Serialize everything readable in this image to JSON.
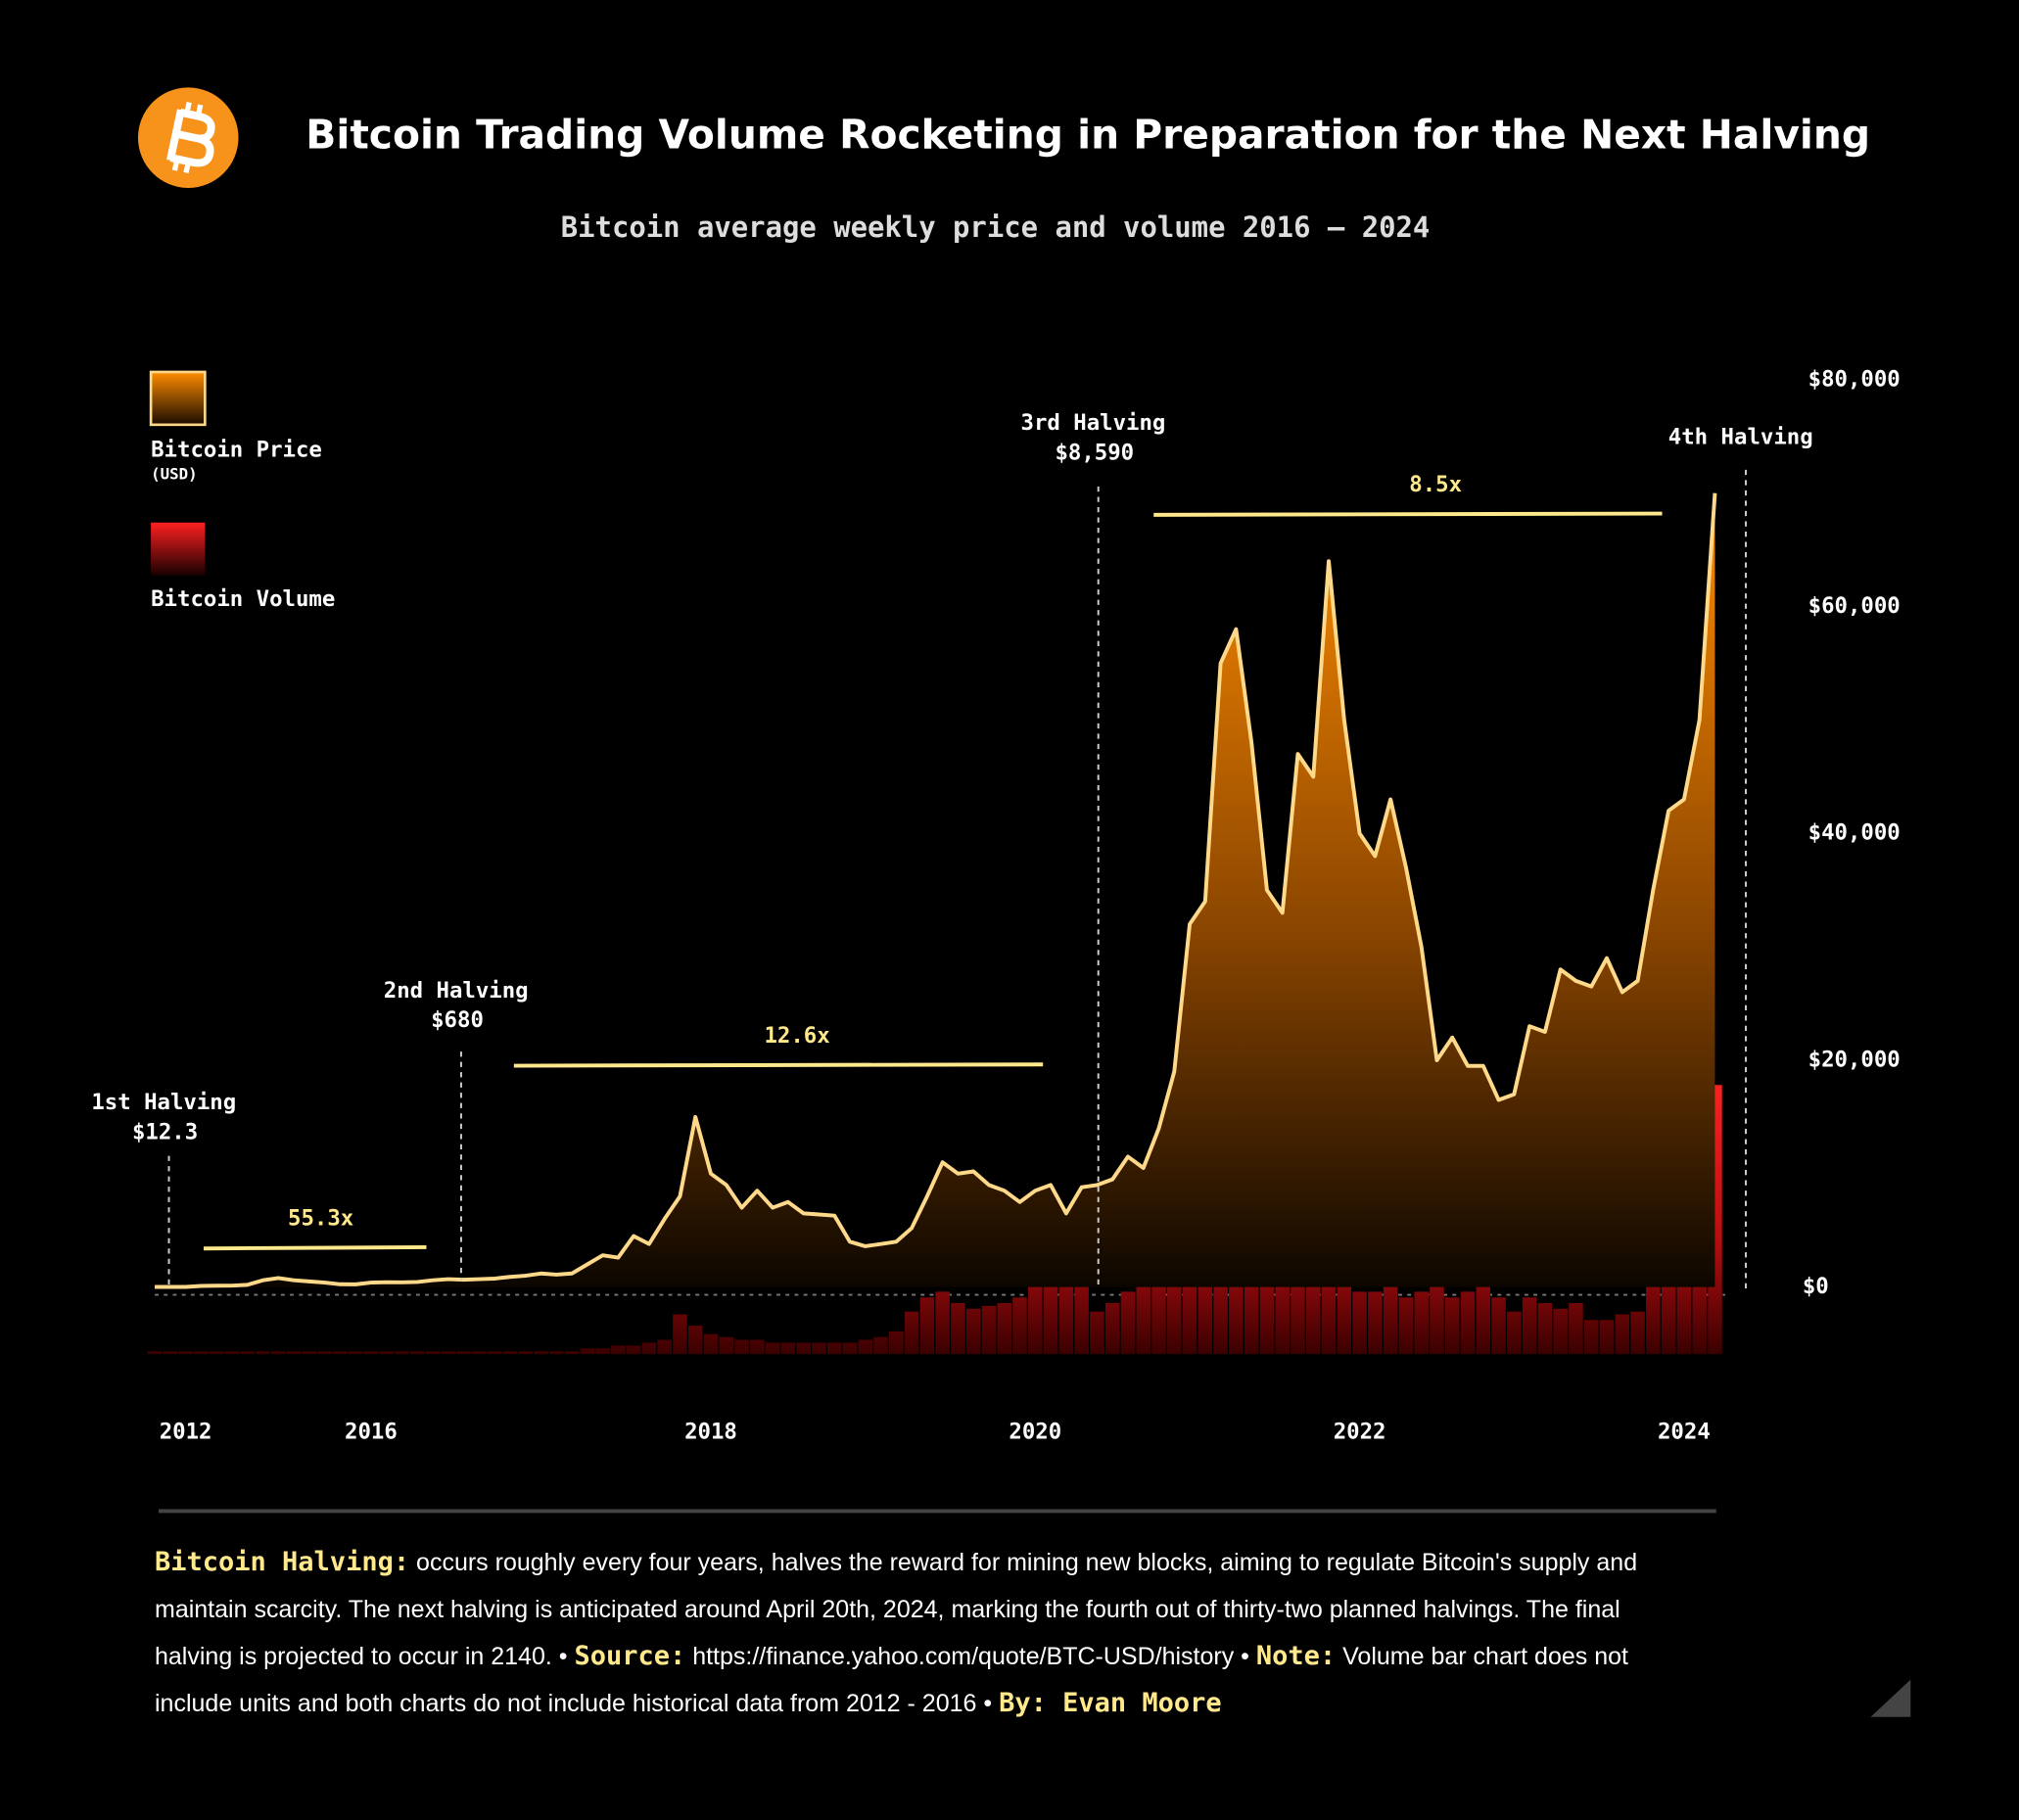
{
  "header": {
    "title": "Bitcoin Trading Volume Rocketing in Preparation for the Next Halving"
  },
  "chart_data": {
    "type": "combo",
    "subtitle": "Bitcoin average weekly price and volume 2016 – 2024",
    "categories": [
      null,
      null,
      "2012",
      null,
      null,
      null,
      null,
      null,
      null,
      null,
      null,
      null,
      null,
      null,
      "2016",
      null,
      null,
      null,
      null,
      null,
      null,
      null,
      null,
      null,
      null,
      null,
      null,
      null,
      null,
      null,
      null,
      null,
      null,
      null,
      null,
      null,
      "2018",
      null,
      null,
      null,
      null,
      null,
      null,
      null,
      null,
      null,
      null,
      null,
      null,
      null,
      null,
      null,
      null,
      null,
      null,
      null,
      null,
      "2020",
      null,
      null,
      null,
      null,
      null,
      null,
      null,
      null,
      null,
      null,
      null,
      null,
      null,
      null,
      null,
      null,
      null,
      null,
      null,
      null,
      "2022",
      null,
      null,
      null,
      null,
      null,
      null,
      null,
      null,
      null,
      null,
      null,
      null,
      null,
      null,
      null,
      null,
      null,
      null,
      null,
      null,
      "2024",
      null,
      null
    ],
    "series": [
      {
        "name": "Bitcoin Price",
        "unit": "(USD)",
        "color": "#ff8c00",
        "line_color": "#ffd98a",
        "values": [
          13,
          12,
          13,
          100,
          120,
          130,
          200,
          600,
          800,
          600,
          500,
          400,
          250,
          240,
          400,
          430,
          420,
          450,
          600,
          700,
          650,
          700,
          750,
          900,
          1000,
          1200,
          1100,
          1200,
          2000,
          2800,
          2600,
          4500,
          3800,
          6000,
          8000,
          15000,
          10000,
          9000,
          7000,
          8500,
          7000,
          7500,
          6500,
          6400,
          6300,
          4000,
          3600,
          3800,
          4000,
          5200,
          8000,
          11000,
          10000,
          10200,
          9000,
          8500,
          7500,
          8500,
          9000,
          6500,
          8800,
          9000,
          9500,
          11500,
          10500,
          14000,
          19000,
          32000,
          34000,
          55000,
          58000,
          48000,
          35000,
          33000,
          47000,
          45000,
          64000,
          50000,
          40000,
          38000,
          43000,
          37000,
          30000,
          20000,
          22000,
          19500,
          19500,
          16500,
          17000,
          23000,
          22500,
          28000,
          27000,
          26500,
          29000,
          26000,
          27000,
          35000,
          42000,
          43000,
          50000,
          70000
        ]
      },
      {
        "name": "Bitcoin Volume",
        "color": "#e0161b",
        "axis": "y2",
        "values": [
          1,
          1,
          1,
          1,
          1,
          1,
          1,
          1,
          1,
          1,
          1,
          1,
          1,
          1,
          1,
          1,
          1,
          1,
          1,
          1,
          1,
          1,
          1,
          1,
          1,
          1,
          1,
          1,
          2,
          2,
          3,
          3,
          4,
          5,
          14,
          10,
          7,
          6,
          5,
          5,
          4,
          4,
          4,
          4,
          4,
          4,
          5,
          6,
          8,
          15,
          20,
          22,
          18,
          16,
          17,
          18,
          20,
          25,
          33,
          30,
          25,
          15,
          18,
          22,
          28,
          32,
          40,
          55,
          70,
          65,
          60,
          50,
          30,
          25,
          25,
          28,
          30,
          25,
          22,
          22,
          25,
          20,
          22,
          25,
          20,
          22,
          25,
          20,
          15,
          20,
          18,
          16,
          18,
          12,
          12,
          14,
          15,
          25,
          45,
          40,
          55,
          95
        ]
      }
    ],
    "ylim": [
      0,
      80000
    ],
    "yticks": [
      {
        "value": 0,
        "label": "$0"
      },
      {
        "value": 20000,
        "label": "$20,000"
      },
      {
        "value": 40000,
        "label": "$40,000"
      },
      {
        "value": 60000,
        "label": "$60,000"
      },
      {
        "value": 80000,
        "label": "$80,000"
      }
    ],
    "y2lim": [
      0,
      100
    ],
    "annotations": [
      {
        "label": "1st Halving",
        "price": "$12.3"
      },
      {
        "label": "2nd Halving",
        "price": "$680"
      },
      {
        "label": "3rd Halving",
        "price": "$8,590"
      },
      {
        "label": "4th Halving"
      }
    ],
    "multipliers": [
      "55.3x",
      "12.6x",
      "8.5x"
    ]
  },
  "footer": {
    "halving_heading": "Bitcoin Halving:",
    "halving_text": "occurs roughly every four years, halves the reward for mining new blocks, aiming to regulate Bitcoin's supply and maintain scarcity. The next halving is anticipated around April 20th, 2024, marking the fourth out of thirty-two planned halvings. The final halving is projected to occur in 2140. •",
    "source_heading": "Source:",
    "source_text": "https://finance.yahoo.com/quote/BTC-USD/history •",
    "note_heading": "Note:",
    "note_text": "Volume bar chart does not include units and both charts do not include historical data from 2012 - 2016 •",
    "byline": "By: Evan Moore"
  }
}
